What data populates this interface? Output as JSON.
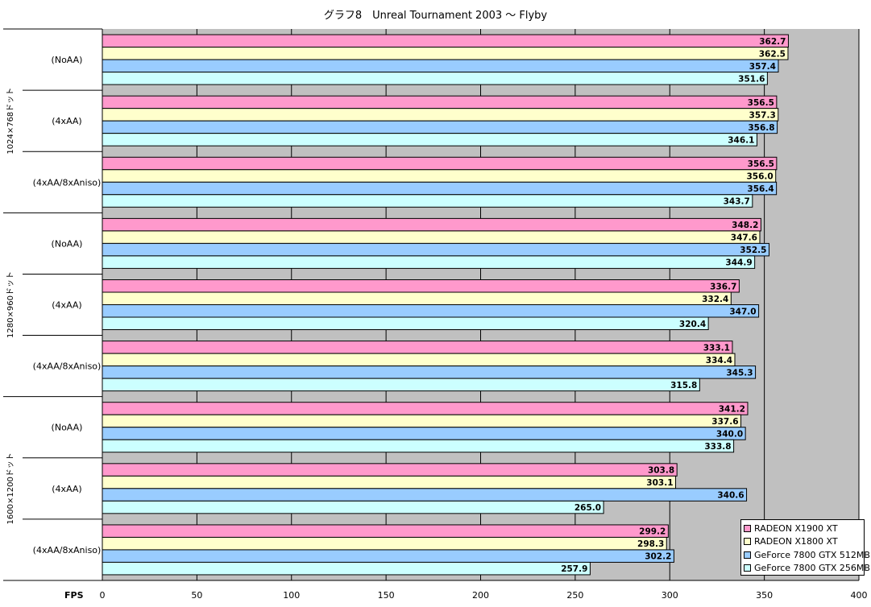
{
  "chart_data": {
    "type": "bar",
    "orientation": "horizontal",
    "title": "グラフ8　Unreal Tournament 2003 ～ Flyby",
    "xlabel": "FPS",
    "xlim": [
      0,
      400
    ],
    "x_ticks": [
      0,
      50,
      100,
      150,
      200,
      250,
      300,
      350,
      400
    ],
    "grid": true,
    "legend_position": "bottom-right",
    "resolutions": [
      "1024×768ドット",
      "1280×960ドット",
      "1600×1200ドット"
    ],
    "categories": [
      "(NoAA)",
      "(4xAA)",
      "(4xAA/8xAniso)",
      "(NoAA)",
      "(4xAA)",
      "(4xAA/8xAniso)",
      "(NoAA)",
      "(4xAA)",
      "(4xAA/8xAniso)"
    ],
    "series": [
      {
        "name": "RADEON X1900 XT",
        "color": "#FF99CC",
        "values": [
          362.7,
          356.5,
          356.5,
          348.2,
          336.7,
          333.1,
          341.2,
          303.8,
          299.2
        ]
      },
      {
        "name": "RADEON X1800 XT",
        "color": "#FFFFCC",
        "values": [
          362.5,
          357.3,
          356.0,
          347.6,
          332.4,
          334.4,
          337.6,
          303.1,
          298.3
        ]
      },
      {
        "name": "GeForce 7800 GTX 512MB",
        "color": "#99CCFF",
        "values": [
          357.4,
          356.8,
          356.4,
          352.5,
          347.0,
          345.3,
          340.0,
          340.6,
          302.2
        ]
      },
      {
        "name": "GeForce 7800 GTX 256MB",
        "color": "#CCFFFF",
        "values": [
          351.6,
          346.1,
          343.7,
          344.9,
          320.4,
          315.8,
          333.8,
          265.0,
          257.9
        ]
      }
    ]
  }
}
